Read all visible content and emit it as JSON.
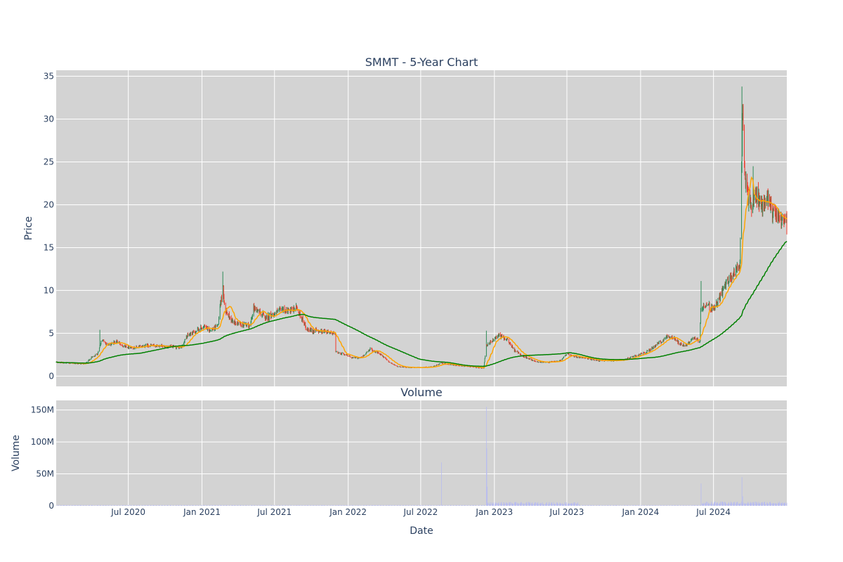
{
  "chart_data": [
    {
      "type": "candlestick",
      "title": "SMMT - 5-Year Chart",
      "ylabel": "Price",
      "ylim": [
        -1.2,
        35.7
      ],
      "yticks": [
        0,
        5,
        10,
        15,
        20,
        25,
        30,
        35
      ],
      "grid": true,
      "legend": "none",
      "colors": {
        "up": "#2e8b57",
        "down": "#ef3b2c",
        "ma_short": "#ffa500",
        "ma_long": "#008000",
        "plot_bg": "#d3d3d3"
      },
      "x_range": [
        "2020-01-03",
        "2024-12-31"
      ],
      "price_anchors": [
        [
          "2020-01-03",
          1.6
        ],
        [
          "2020-02-15",
          1.5
        ],
        [
          "2020-03-15",
          1.4
        ],
        [
          "2020-04-01",
          2.2
        ],
        [
          "2020-04-15",
          2.6
        ],
        [
          "2020-04-25",
          4.2
        ],
        [
          "2020-05-15",
          3.6
        ],
        [
          "2020-06-01",
          4.1
        ],
        [
          "2020-06-20",
          3.5
        ],
        [
          "2020-07-15",
          3.3
        ],
        [
          "2020-08-15",
          3.6
        ],
        [
          "2020-09-15",
          3.5
        ],
        [
          "2020-10-20",
          3.4
        ],
        [
          "2020-11-10",
          3.3
        ],
        [
          "2020-11-25",
          4.7
        ],
        [
          "2020-12-15",
          5.2
        ],
        [
          "2021-01-05",
          5.8
        ],
        [
          "2021-01-20",
          5.3
        ],
        [
          "2021-02-10",
          5.9
        ],
        [
          "2021-02-22",
          10.5
        ],
        [
          "2021-03-01",
          7.5
        ],
        [
          "2021-03-20",
          6.3
        ],
        [
          "2021-04-10",
          6.0
        ],
        [
          "2021-04-30",
          5.8
        ],
        [
          "2021-05-10",
          8.0
        ],
        [
          "2021-05-25",
          7.5
        ],
        [
          "2021-06-10",
          6.8
        ],
        [
          "2021-07-01",
          7.3
        ],
        [
          "2021-07-20",
          7.8
        ],
        [
          "2021-08-10",
          7.5
        ],
        [
          "2021-08-25",
          8.0
        ],
        [
          "2021-09-10",
          6.5
        ],
        [
          "2021-09-20",
          5.3
        ],
        [
          "2021-10-15",
          5.3
        ],
        [
          "2021-11-15",
          5.2
        ],
        [
          "2021-11-30",
          4.8
        ],
        [
          "2021-12-01",
          2.8
        ],
        [
          "2021-12-20",
          2.6
        ],
        [
          "2022-01-15",
          2.1
        ],
        [
          "2022-02-05",
          2.2
        ],
        [
          "2022-02-25",
          3.2
        ],
        [
          "2022-03-20",
          2.6
        ],
        [
          "2022-04-15",
          1.6
        ],
        [
          "2022-05-05",
          1.1
        ],
        [
          "2022-06-01",
          1.0
        ],
        [
          "2022-07-01",
          1.0
        ],
        [
          "2022-08-01",
          1.1
        ],
        [
          "2022-08-20",
          1.5
        ],
        [
          "2022-09-20",
          1.3
        ],
        [
          "2022-11-01",
          1.1
        ],
        [
          "2022-12-05",
          0.9
        ],
        [
          "2022-12-12",
          3.5
        ],
        [
          "2022-12-25",
          4.0
        ],
        [
          "2023-01-10",
          4.8
        ],
        [
          "2023-02-01",
          4.3
        ],
        [
          "2023-02-20",
          3.0
        ],
        [
          "2023-03-15",
          2.3
        ],
        [
          "2023-04-15",
          1.7
        ],
        [
          "2023-05-15",
          1.6
        ],
        [
          "2023-06-15",
          1.8
        ],
        [
          "2023-07-01",
          2.6
        ],
        [
          "2023-07-20",
          2.3
        ],
        [
          "2023-08-15",
          2.1
        ],
        [
          "2023-09-15",
          1.8
        ],
        [
          "2023-10-15",
          1.8
        ],
        [
          "2023-11-15",
          1.9
        ],
        [
          "2023-12-15",
          2.3
        ],
        [
          "2024-01-15",
          2.8
        ],
        [
          "2024-02-01",
          3.3
        ],
        [
          "2024-02-20",
          4.0
        ],
        [
          "2024-03-10",
          4.7
        ],
        [
          "2024-03-25",
          4.4
        ],
        [
          "2024-04-10",
          3.7
        ],
        [
          "2024-04-25",
          3.6
        ],
        [
          "2024-05-10",
          4.5
        ],
        [
          "2024-05-28",
          4.0
        ],
        [
          "2024-05-30",
          8.0
        ],
        [
          "2024-06-15",
          8.3
        ],
        [
          "2024-07-01",
          7.8
        ],
        [
          "2024-07-15",
          9.0
        ],
        [
          "2024-08-01",
          10.8
        ],
        [
          "2024-08-15",
          11.5
        ],
        [
          "2024-08-25",
          12.5
        ],
        [
          "2024-09-05",
          13.0
        ],
        [
          "2024-09-09",
          24.5
        ],
        [
          "2024-09-12",
          31.0
        ],
        [
          "2024-09-16",
          24.0
        ],
        [
          "2024-09-25",
          21.0
        ],
        [
          "2024-10-05",
          19.5
        ],
        [
          "2024-10-15",
          21.5
        ],
        [
          "2024-10-25",
          20.0
        ],
        [
          "2024-11-05",
          19.5
        ],
        [
          "2024-11-15",
          21.0
        ],
        [
          "2024-11-25",
          19.0
        ],
        [
          "2024-12-10",
          18.5
        ],
        [
          "2024-12-31",
          17.8
        ]
      ],
      "spikes": [
        [
          "2020-04-21",
          5.4
        ],
        [
          "2021-02-22",
          12.2
        ],
        [
          "2022-12-12",
          5.3
        ],
        [
          "2024-05-31",
          11.1
        ],
        [
          "2024-09-10",
          33.8
        ],
        [
          "2024-10-08",
          24.5
        ]
      ]
    },
    {
      "type": "bar",
      "title": "Volume",
      "ylabel": "Volume",
      "xlabel": "Date",
      "ylim": [
        0,
        165000000
      ],
      "yticks": [
        0,
        50000000,
        100000000,
        150000000
      ],
      "ytick_labels": [
        "0",
        "50M",
        "100M",
        "150M"
      ],
      "xticks": [
        "2020-07-01",
        "2021-01-01",
        "2021-07-01",
        "2022-01-01",
        "2022-07-01",
        "2023-01-01",
        "2023-07-01",
        "2024-01-01",
        "2024-07-01"
      ],
      "xtick_labels": [
        "Jul 2020",
        "Jan 2021",
        "Jul 2021",
        "Jan 2022",
        "Jul 2022",
        "Jan 2023",
        "Jul 2023",
        "Jan 2024",
        "Jul 2024"
      ],
      "grid": true,
      "colors": {
        "bar": "#b8bcf0",
        "plot_bg": "#d3d3d3"
      },
      "baseline_volume": 700000,
      "volume_peaks": [
        [
          "2022-08-22",
          68000000
        ],
        [
          "2022-12-12",
          155000000
        ],
        [
          "2022-12-13",
          90000000
        ],
        [
          "2022-12-14",
          30000000
        ],
        [
          "2024-05-31",
          35000000
        ],
        [
          "2024-09-10",
          45000000
        ],
        [
          "2024-09-12",
          15000000
        ]
      ],
      "volume_elevated_periods": [
        [
          "2022-12-15",
          "2023-07-31",
          4000000
        ],
        [
          "2024-06-01",
          "2024-12-31",
          4500000
        ]
      ]
    }
  ]
}
